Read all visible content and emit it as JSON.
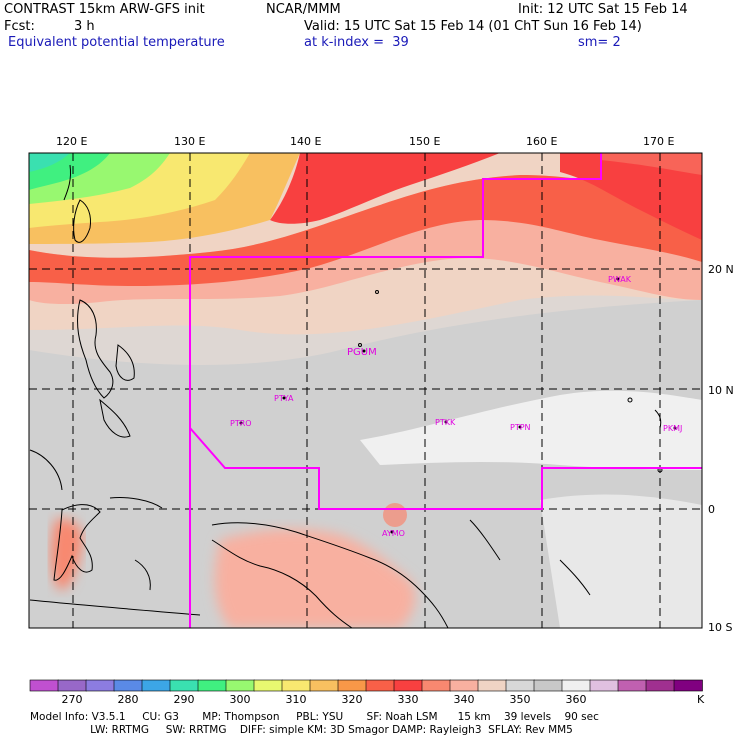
{
  "header": {
    "model_title": "CONTRAST 15km ARW-GFS init",
    "org": "NCAR/MMM",
    "init": "Init: 12 UTC Sat 15 Feb 14",
    "fcst_label": "Fcst:",
    "fcst_value": "3 h",
    "valid": "Valid: 15 UTC Sat 15 Feb 14 (01 ChT Sun 16 Feb 14)",
    "field_name": "Equivalent potential temperature",
    "level": "at k-index =  39",
    "smoothing": "sm= 2"
  },
  "map": {
    "lon_ticks": [
      "120 E",
      "130 E",
      "140 E",
      "150 E",
      "160 E",
      "170 E"
    ],
    "lat_ticks": [
      "20 N",
      "10 N",
      "0",
      "10 S"
    ],
    "stations": [
      {
        "id": "PWAK"
      },
      {
        "id": "PGUM"
      },
      {
        "id": "PTYA"
      },
      {
        "id": "PTRO"
      },
      {
        "id": "PTKK"
      },
      {
        "id": "PTPN"
      },
      {
        "id": "PKMJ"
      },
      {
        "id": "AYMO"
      }
    ]
  },
  "colorbar": {
    "colors": [
      "#c050d0",
      "#9868c8",
      "#8c7ce0",
      "#5a8ae6",
      "#3ca6e6",
      "#3ae0b0",
      "#40f080",
      "#98f870",
      "#e8f870",
      "#f8e870",
      "#f8c060",
      "#f89848",
      "#f86048",
      "#f84040",
      "#f88870",
      "#f8b0a0",
      "#f0d4c4",
      "#d8d8d8",
      "#c8c8c8",
      "#f0f0f0",
      "#e0c0e0",
      "#c060b0",
      "#a03090",
      "#800080"
    ],
    "labels": [
      "270",
      "280",
      "290",
      "300",
      "310",
      "320",
      "330",
      "340",
      "350",
      "360"
    ],
    "unit": "K"
  },
  "footer": {
    "line1": "Model Info: V3.5.1     CU: G3       MP: Thompson     PBL: YSU       SF: Noah LSM      15 km    39 levels    90 sec",
    "line2": "                  LW: RRTMG     SW: RRTMG    DIFF: simple KM: 3D Smagor DAMP: Rayleigh3  SFLAY: Rev MM5"
  },
  "colors": {
    "domain_boundary": "#ff00ff",
    "station_label": "#e000e0",
    "header_blue": "#1a1ab8"
  }
}
